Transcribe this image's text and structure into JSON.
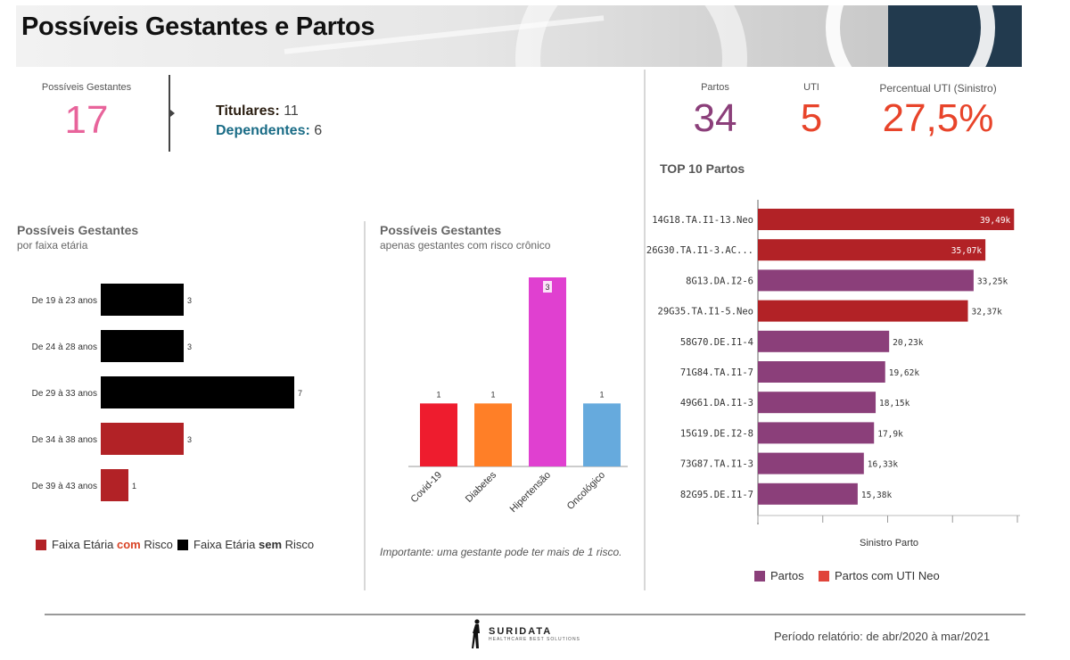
{
  "header": {
    "title": "Possíveis Gestantes e Partos"
  },
  "kpis_left": {
    "label": "Possíveis Gestantes",
    "value": "17",
    "titulares_label": "Titulares:",
    "titulares_value": "11",
    "dependentes_label": "Dependentes:",
    "dependentes_value": "6"
  },
  "kpis_right": {
    "partos_label": "Partos",
    "partos_value": "34",
    "uti_label": "UTI",
    "uti_value": "5",
    "percentual_label": "Percentual UTI (Sinistro)",
    "percentual_value": "27,5%"
  },
  "colors": {
    "pink": "#e8649b",
    "purple": "#8b3f7a",
    "red_orange": "#e8442a",
    "dark_red": "#b22226",
    "black": "#000000",
    "teal": "#1a6c86",
    "dark_brown": "#2a1d10"
  },
  "chart_data": [
    {
      "type": "bar",
      "orientation": "horizontal",
      "title": "Possíveis Gestantes",
      "subtitle": "por faixa etária",
      "categories": [
        "De 19 à 23 anos",
        "De 24 à 28 anos",
        "De 29 à 33 anos",
        "De 34 à 38 anos",
        "De 39 à 43 anos"
      ],
      "values": [
        3,
        3,
        7,
        3,
        1
      ],
      "bar_colors": [
        "#000000",
        "#000000",
        "#000000",
        "#b22226",
        "#b22226"
      ],
      "xlim": [
        0,
        7
      ],
      "legend": [
        {
          "pre": "Faixa Etária ",
          "em": "com",
          "post": " Risco",
          "color": "#b22226",
          "em_color": "#d94426"
        },
        {
          "pre": "Faixa Etária ",
          "em": "sem",
          "post": " Risco",
          "color": "#000000",
          "em_color": "#000000"
        }
      ],
      "legend_position": "bottom"
    },
    {
      "type": "bar",
      "orientation": "vertical",
      "title": "Possíveis Gestantes",
      "subtitle": "apenas gestantes com risco crônico",
      "categories": [
        "Covid-19",
        "Diabetes",
        "Hipertensão",
        "Oncológico"
      ],
      "values": [
        1,
        1,
        3,
        1
      ],
      "bar_colors": [
        "#ee1c2e",
        "#ff7f27",
        "#e040d0",
        "#66aadd"
      ],
      "ylim": [
        0,
        3
      ],
      "note": "Importante: uma gestante pode ter mais de 1 risco."
    },
    {
      "type": "bar",
      "orientation": "horizontal",
      "title": "TOP 10 Partos",
      "categories": [
        "14G18.TA.I1-13.Neo",
        "26G30.TA.I1-3.AC...",
        "8G13.DA.I2-6",
        "29G35.TA.I1-5.Neo",
        "58G70.DE.I1-4",
        "71G84.TA.I1-7",
        "49G61.DA.I1-3",
        "15G19.DE.I2-8",
        "73G87.TA.I1-3",
        "82G95.DE.I1-7"
      ],
      "values": [
        39490,
        35070,
        33250,
        32370,
        20230,
        19620,
        18150,
        17900,
        16330,
        15380
      ],
      "value_labels": [
        "39,49k",
        "35,07k",
        "33,25k",
        "32,37k",
        "20,23k",
        "19,62k",
        "18,15k",
        "17,9k",
        "16,33k",
        "15,38k"
      ],
      "bar_colors": [
        "#b22226",
        "#b22226",
        "#8b3f7a",
        "#b22226",
        "#8b3f7a",
        "#8b3f7a",
        "#8b3f7a",
        "#8b3f7a",
        "#8b3f7a",
        "#8b3f7a"
      ],
      "xlabel": "Sinistro Parto",
      "xlim": [
        0,
        40000
      ],
      "legend": [
        {
          "label": "Partos",
          "color": "#8b3f7a"
        },
        {
          "label": "Partos com UTI Neo",
          "color": "#e0443a"
        }
      ],
      "legend_position": "bottom"
    }
  ],
  "footer": {
    "logo_name": "SURIDATA",
    "logo_tagline": "HEALTHCARE BEST SOLUTIONS",
    "periodo": "Período relatório: de abr/2020 à mar/2021"
  }
}
